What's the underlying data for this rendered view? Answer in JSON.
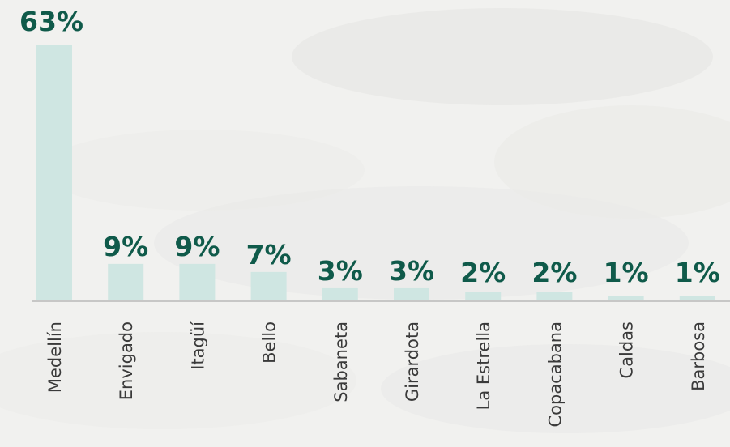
{
  "chart_data": {
    "type": "bar",
    "categories": [
      "Medellín",
      "Envigado",
      "Itagüí",
      "Bello",
      "Sabaneta",
      "Girardota",
      "La Estrella",
      "Copacabana",
      "Caldas",
      "Barbosa"
    ],
    "values": [
      63,
      9,
      9,
      7,
      3,
      3,
      2,
      2,
      1,
      1
    ],
    "value_labels": [
      "63%",
      "9%",
      "9%",
      "7%",
      "3%",
      "3%",
      "2%",
      "2%",
      "1%",
      "1%"
    ],
    "unit": "%",
    "ylim": [
      0,
      63
    ],
    "grid": false,
    "colors": {
      "bar": "#cfe6e2",
      "value_label": "#0f5a4a",
      "category_label": "#3a3a3a",
      "baseline": "#b9b9b9",
      "background": "#f1f1ef"
    }
  }
}
